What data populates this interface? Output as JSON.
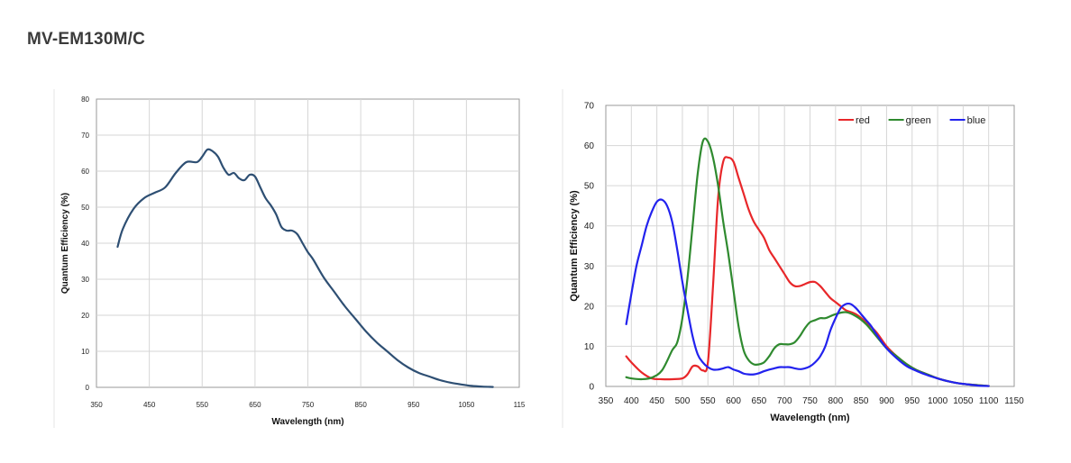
{
  "page": {
    "title": "MV-EM130M/C"
  },
  "chart_data": [
    {
      "type": "line",
      "title": "",
      "xlabel": "Wavelength (nm)",
      "ylabel": "Quantum Efficiency (%)",
      "xlim": [
        350,
        1150
      ],
      "ylim": [
        0,
        80
      ],
      "x_ticks": [
        "350",
        "450",
        "550",
        "650",
        "750",
        "850",
        "950",
        "1050",
        "115"
      ],
      "y_ticks": [
        "0",
        "10",
        "20",
        "30",
        "40",
        "50",
        "60",
        "70",
        "80"
      ],
      "grid": true,
      "series": [
        {
          "color": "#2e4f73",
          "x": [
            390,
            400,
            420,
            440,
            460,
            480,
            500,
            520,
            540,
            550,
            560,
            570,
            580,
            590,
            600,
            610,
            620,
            630,
            640,
            650,
            660,
            670,
            680,
            690,
            700,
            710,
            720,
            730,
            740,
            750,
            760,
            780,
            800,
            820,
            840,
            860,
            880,
            900,
            920,
            940,
            960,
            980,
            1000,
            1020,
            1040,
            1060,
            1080,
            1100
          ],
          "y": [
            39,
            44,
            49.5,
            52.5,
            54,
            55.5,
            59.5,
            62.5,
            62.5,
            64,
            66,
            65.5,
            64,
            61,
            59,
            59.5,
            58,
            57.5,
            59,
            58.5,
            55.5,
            52.5,
            50.5,
            48,
            44.5,
            43.5,
            43.5,
            42.5,
            40,
            37.5,
            35.5,
            30.5,
            26.5,
            22.5,
            19,
            15.5,
            12.5,
            10,
            7.5,
            5.5,
            4,
            3,
            2,
            1.3,
            0.8,
            0.4,
            0.2,
            0.1
          ]
        }
      ]
    },
    {
      "type": "line",
      "title": "",
      "xlabel": "Wavelength (nm)",
      "ylabel": "Quantum Efficiency (%)",
      "xlim": [
        350,
        1150
      ],
      "ylim": [
        0,
        70
      ],
      "x_ticks": [
        "350",
        "400",
        "450",
        "500",
        "550",
        "600",
        "650",
        "700",
        "750",
        "800",
        "850",
        "900",
        "950",
        "1000",
        "1050",
        "1100",
        "1150"
      ],
      "y_ticks": [
        "0",
        "10",
        "20",
        "30",
        "40",
        "50",
        "60",
        "70"
      ],
      "grid": true,
      "legend_position": "top-right",
      "series": [
        {
          "name": "red",
          "color": "#e8272a",
          "x": [
            390,
            400,
            420,
            440,
            460,
            480,
            500,
            510,
            520,
            530,
            540,
            550,
            560,
            570,
            580,
            590,
            600,
            610,
            620,
            630,
            640,
            650,
            660,
            670,
            680,
            690,
            700,
            710,
            720,
            730,
            740,
            750,
            760,
            770,
            780,
            790,
            800,
            810,
            820,
            840,
            860,
            880,
            900,
            920,
            940,
            960,
            980,
            1000,
            1020,
            1040,
            1060,
            1080,
            1100
          ],
          "y": [
            7.5,
            6,
            3.5,
            2,
            1.8,
            1.8,
            2,
            3,
            5,
            5,
            4,
            6,
            25,
            47,
            56,
            57,
            56,
            52,
            48,
            44,
            41,
            39,
            37,
            34,
            32,
            30,
            28,
            26,
            25,
            25,
            25.5,
            26,
            26,
            25,
            23.5,
            22,
            21,
            20,
            19,
            18,
            16,
            13.5,
            10,
            7.5,
            5.5,
            4,
            3,
            2,
            1.3,
            0.8,
            0.5,
            0.3,
            0.1
          ]
        },
        {
          "name": "green",
          "color": "#2f8a2f",
          "x": [
            390,
            400,
            420,
            440,
            460,
            480,
            490,
            500,
            510,
            520,
            530,
            540,
            550,
            560,
            570,
            580,
            590,
            600,
            610,
            620,
            630,
            640,
            650,
            660,
            670,
            680,
            690,
            700,
            710,
            720,
            730,
            740,
            750,
            760,
            770,
            780,
            790,
            800,
            820,
            840,
            860,
            880,
            900,
            920,
            940,
            960,
            980,
            1000,
            1020,
            1040,
            1060,
            1080,
            1100
          ],
          "y": [
            2.3,
            2,
            1.8,
            2.2,
            4,
            9,
            11,
            17,
            27,
            40,
            53,
            61,
            61,
            57,
            50,
            41,
            33,
            24,
            15,
            9,
            6.5,
            5.5,
            5.5,
            6,
            7.5,
            9.5,
            10.5,
            10.5,
            10.5,
            11,
            12.5,
            14.5,
            16,
            16.5,
            17,
            17,
            17.5,
            18,
            18.5,
            17.5,
            15.5,
            12.5,
            9.5,
            7.5,
            5.5,
            4,
            3,
            2,
            1.3,
            0.8,
            0.5,
            0.3,
            0.1
          ]
        },
        {
          "name": "blue",
          "color": "#2222ee",
          "x": [
            390,
            400,
            410,
            420,
            430,
            440,
            450,
            460,
            470,
            480,
            490,
            500,
            510,
            520,
            530,
            540,
            550,
            560,
            570,
            580,
            590,
            600,
            610,
            620,
            630,
            640,
            650,
            660,
            670,
            680,
            690,
            700,
            710,
            720,
            730,
            740,
            750,
            760,
            770,
            780,
            790,
            800,
            810,
            820,
            830,
            840,
            850,
            860,
            870,
            880,
            900,
            920,
            940,
            960,
            980,
            1000,
            1020,
            1040,
            1060,
            1080,
            1100
          ],
          "y": [
            15.5,
            23,
            30,
            35,
            40,
            43.5,
            46,
            46.5,
            45,
            41,
            34,
            26,
            19,
            12.5,
            8,
            6,
            4.8,
            4.2,
            4.2,
            4.5,
            4.8,
            4.2,
            3.8,
            3.2,
            3,
            3,
            3.3,
            3.8,
            4.2,
            4.5,
            4.8,
            4.8,
            4.8,
            4.5,
            4.3,
            4.5,
            5,
            6,
            7.5,
            10,
            14,
            17,
            19.5,
            20.5,
            20.5,
            19.5,
            18,
            16.5,
            15,
            13,
            9.5,
            7,
            5,
            3.8,
            2.8,
            2,
            1.3,
            0.8,
            0.5,
            0.2,
            0.1
          ]
        }
      ]
    }
  ]
}
